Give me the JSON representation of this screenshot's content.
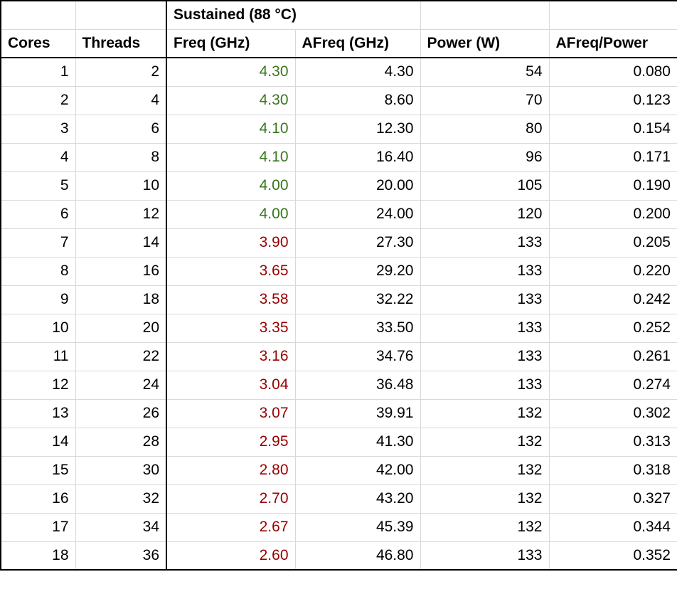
{
  "palette": {
    "green": "#38761d",
    "red": "#990000",
    "gridline": "#d9d9d9",
    "thick_border": "#000000",
    "text": "#000000",
    "background": "#ffffff"
  },
  "header": {
    "sustained_label": "Sustained (88 °C)",
    "columns": [
      "Cores",
      "Threads",
      "Freq (GHz)",
      "AFreq (GHz)",
      "Power (W)",
      "AFreq/Power"
    ]
  },
  "column_keys": [
    "cores",
    "threads",
    "freq",
    "afreq",
    "power",
    "ratio"
  ],
  "rows": [
    {
      "cores": "1",
      "threads": "2",
      "freq": "4.30",
      "freq_color": "green",
      "afreq": "4.30",
      "power": "54",
      "ratio": "0.080"
    },
    {
      "cores": "2",
      "threads": "4",
      "freq": "4.30",
      "freq_color": "green",
      "afreq": "8.60",
      "power": "70",
      "ratio": "0.123"
    },
    {
      "cores": "3",
      "threads": "6",
      "freq": "4.10",
      "freq_color": "green",
      "afreq": "12.30",
      "power": "80",
      "ratio": "0.154"
    },
    {
      "cores": "4",
      "threads": "8",
      "freq": "4.10",
      "freq_color": "green",
      "afreq": "16.40",
      "power": "96",
      "ratio": "0.171"
    },
    {
      "cores": "5",
      "threads": "10",
      "freq": "4.00",
      "freq_color": "green",
      "afreq": "20.00",
      "power": "105",
      "ratio": "0.190"
    },
    {
      "cores": "6",
      "threads": "12",
      "freq": "4.00",
      "freq_color": "green",
      "afreq": "24.00",
      "power": "120",
      "ratio": "0.200"
    },
    {
      "cores": "7",
      "threads": "14",
      "freq": "3.90",
      "freq_color": "red",
      "afreq": "27.30",
      "power": "133",
      "ratio": "0.205"
    },
    {
      "cores": "8",
      "threads": "16",
      "freq": "3.65",
      "freq_color": "red",
      "afreq": "29.20",
      "power": "133",
      "ratio": "0.220"
    },
    {
      "cores": "9",
      "threads": "18",
      "freq": "3.58",
      "freq_color": "red",
      "afreq": "32.22",
      "power": "133",
      "ratio": "0.242"
    },
    {
      "cores": "10",
      "threads": "20",
      "freq": "3.35",
      "freq_color": "red",
      "afreq": "33.50",
      "power": "133",
      "ratio": "0.252"
    },
    {
      "cores": "11",
      "threads": "22",
      "freq": "3.16",
      "freq_color": "red",
      "afreq": "34.76",
      "power": "133",
      "ratio": "0.261"
    },
    {
      "cores": "12",
      "threads": "24",
      "freq": "3.04",
      "freq_color": "red",
      "afreq": "36.48",
      "power": "133",
      "ratio": "0.274"
    },
    {
      "cores": "13",
      "threads": "26",
      "freq": "3.07",
      "freq_color": "red",
      "afreq": "39.91",
      "power": "132",
      "ratio": "0.302"
    },
    {
      "cores": "14",
      "threads": "28",
      "freq": "2.95",
      "freq_color": "red",
      "afreq": "41.30",
      "power": "132",
      "ratio": "0.313"
    },
    {
      "cores": "15",
      "threads": "30",
      "freq": "2.80",
      "freq_color": "red",
      "afreq": "42.00",
      "power": "132",
      "ratio": "0.318"
    },
    {
      "cores": "16",
      "threads": "32",
      "freq": "2.70",
      "freq_color": "red",
      "afreq": "43.20",
      "power": "132",
      "ratio": "0.327"
    },
    {
      "cores": "17",
      "threads": "34",
      "freq": "2.67",
      "freq_color": "red",
      "afreq": "45.39",
      "power": "132",
      "ratio": "0.344"
    },
    {
      "cores": "18",
      "threads": "36",
      "freq": "2.60",
      "freq_color": "red",
      "afreq": "46.80",
      "power": "133",
      "ratio": "0.352"
    }
  ]
}
